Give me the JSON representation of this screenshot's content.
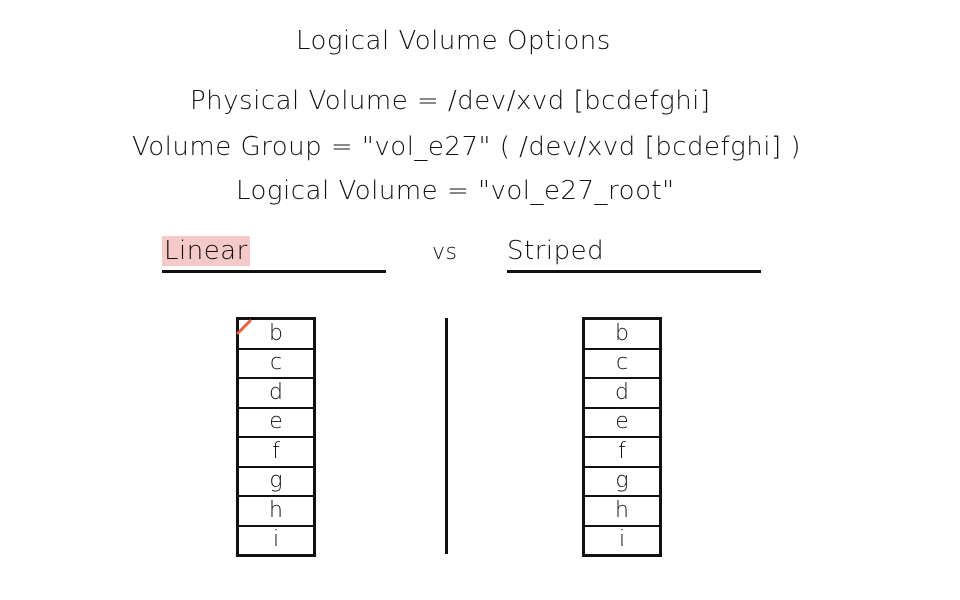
{
  "title": "Logical Volume Options",
  "lines": {
    "physical_volume": "Physical Volume = /dev/xvd [bcdefghi]",
    "volume_group": "Volume Group = \"vol_e27\" ( /dev/xvd [bcdefghi] )",
    "logical_volume": "Logical Volume = \"vol_e27_root\""
  },
  "sections": {
    "linear": "Linear",
    "vs": "vs",
    "striped": "Striped"
  },
  "linear_disks": [
    "b",
    "c",
    "d",
    "e",
    "f",
    "g",
    "h",
    "i"
  ],
  "striped_disks": [
    "b",
    "c",
    "d",
    "e",
    "f",
    "g",
    "h",
    "i"
  ],
  "colors": {
    "ink": "#111111",
    "highlight": "#f6c9c9",
    "accent_mark": "#e8613a"
  }
}
